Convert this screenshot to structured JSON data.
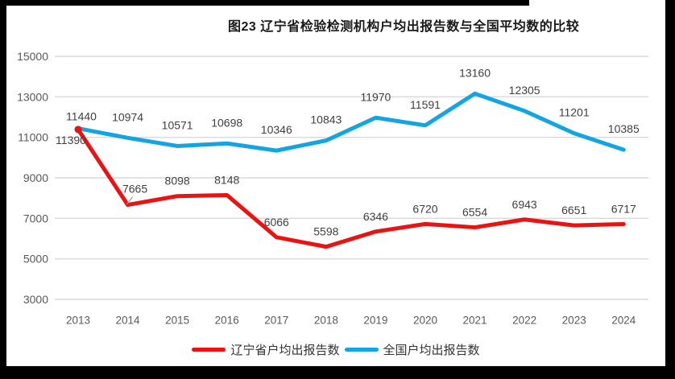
{
  "title": "图23 辽宁省检验检测机构户均出报告数与全国平均数的比较",
  "chart_data": {
    "type": "line",
    "title": "图23 辽宁省检验检测机构户均出报告数与全国平均数的比较",
    "categories": [
      "2013",
      "2014",
      "2015",
      "2016",
      "2017",
      "2018",
      "2019",
      "2020",
      "2021",
      "2022",
      "2023",
      "2024"
    ],
    "series": [
      {
        "name": "辽宁省户均出报告数",
        "color": "#ec1212",
        "values": [
          11390,
          7665,
          8098,
          8148,
          6066,
          5598,
          6346,
          6720,
          6554,
          6943,
          6651,
          6717
        ]
      },
      {
        "name": "全国户均出报告数",
        "color": "#12a5e2",
        "values": [
          11440,
          10974,
          10571,
          10698,
          10346,
          10843,
          11970,
          11591,
          13160,
          12305,
          11201,
          10385
        ]
      }
    ],
    "xlabel": "",
    "ylabel": "",
    "ylim": [
      3000,
      15000
    ],
    "ytick_step": 2000,
    "yticks": [
      "15000",
      "13000",
      "11000",
      "9000",
      "7000",
      "5000",
      "3000"
    ],
    "grid": "horizontal",
    "legend_position": "bottom",
    "data_labels": true,
    "colors": {
      "grid": "#d9d9d9",
      "axis_text": "#595959",
      "data_label_text": "#404040",
      "leader_line": "#9e9e9e"
    }
  }
}
